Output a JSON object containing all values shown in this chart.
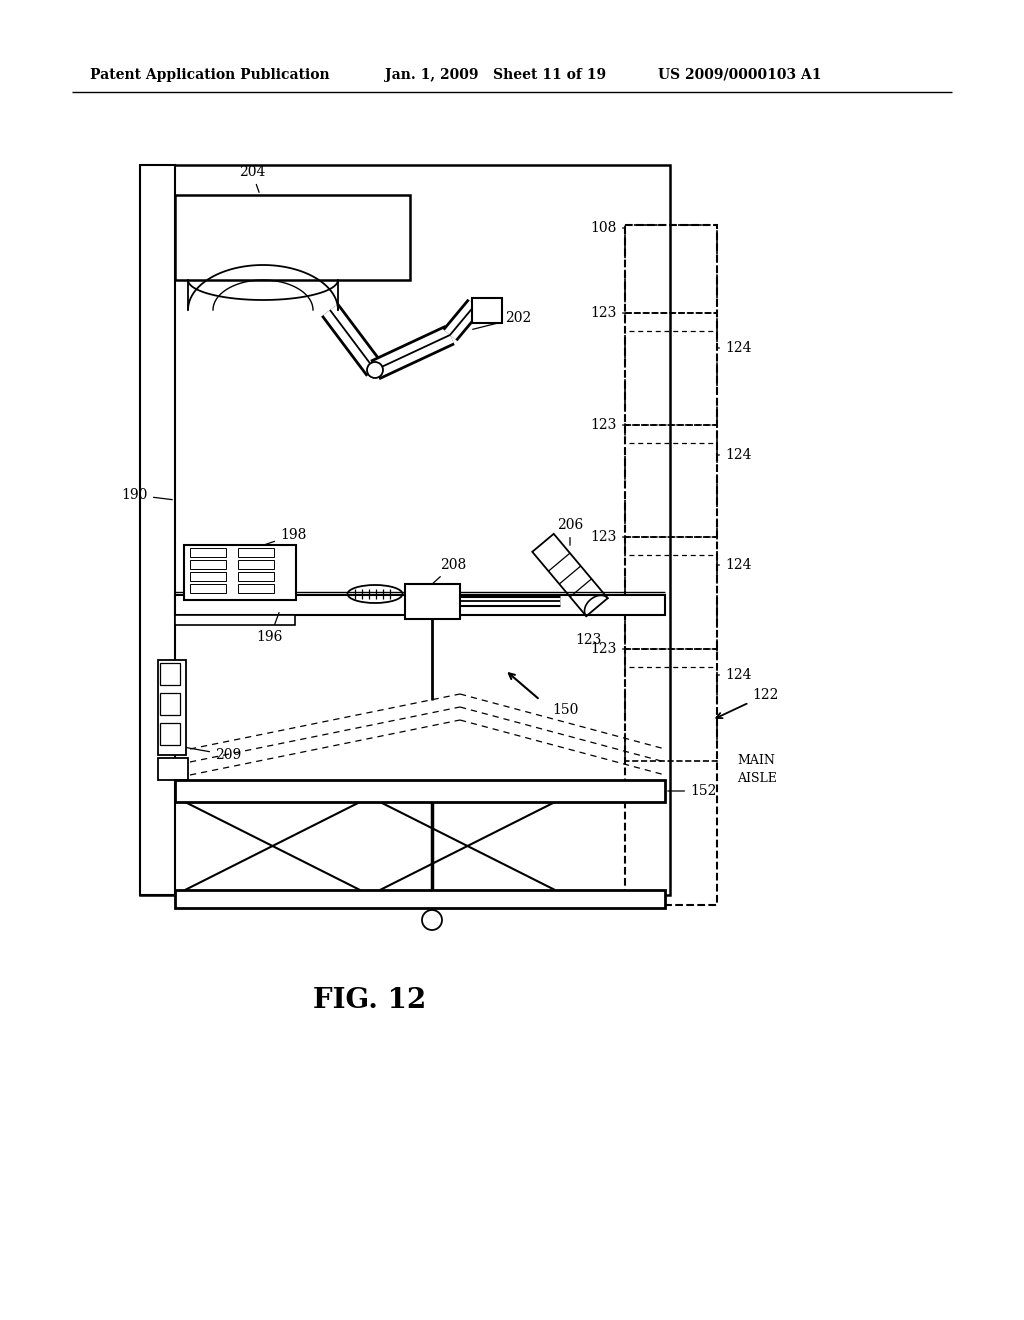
{
  "bg_color": "#ffffff",
  "header_left": "Patent Application Publication",
  "header_mid": "Jan. 1, 2009   Sheet 11 of 19",
  "header_right": "US 2009/0000103 A1",
  "fig_label": "FIG. 12"
}
